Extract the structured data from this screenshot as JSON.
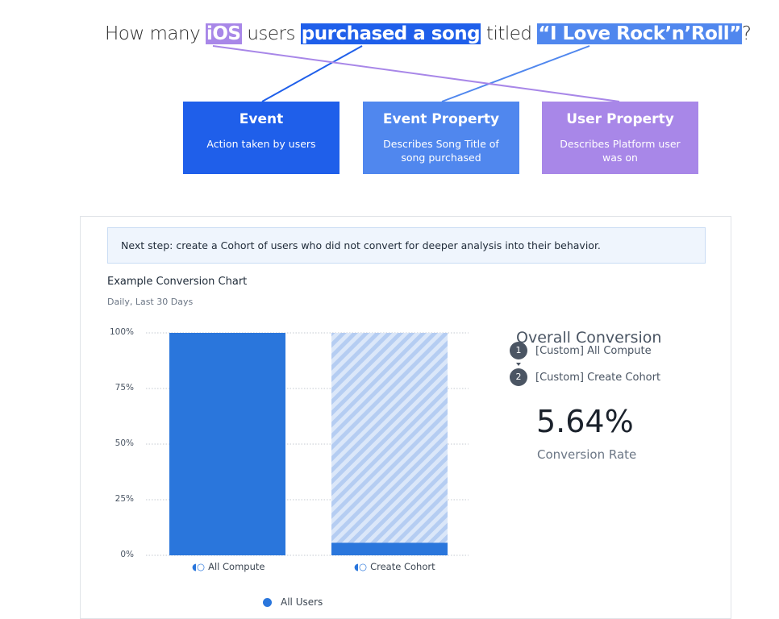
{
  "question": {
    "p1": "How many ",
    "h1": "iOS",
    "p2": " users ",
    "h2": "purchased a song",
    "p3": " titled ",
    "h3": "“I Love Rock’n’Roll”",
    "p4": "?"
  },
  "boxes": [
    {
      "title": "Event",
      "desc": "Action taken by users",
      "color": "#1f5fea"
    },
    {
      "title": "Event Property",
      "desc": "Describes Song Title of song purchased",
      "color": "#5087ee"
    },
    {
      "title": "User Property",
      "desc": "Describes Platform user was on",
      "color": "#a887e8"
    }
  ],
  "card": {
    "note": "Next step: create a Cohort of users who did not convert for deeper analysis into their behavior.",
    "title": "Example Conversion Chart",
    "subtitle": "Daily, Last 30 Days",
    "overall_title": "Overall Conversion",
    "steps": [
      {
        "n": "1",
        "label": "[Custom] All Compute"
      },
      {
        "n": "2",
        "label": "[Custom] Create Cohort"
      }
    ],
    "rate": "5.64%",
    "rate_label": "Conversion Rate"
  },
  "chart_data": {
    "type": "bar",
    "categories": [
      "All Compute",
      "Create Cohort"
    ],
    "series": [
      {
        "name": "All Users",
        "values": [
          100,
          5.64
        ]
      }
    ],
    "yticks": [
      "0%",
      "25%",
      "50%",
      "75%",
      "100%"
    ],
    "ylim": [
      0,
      100
    ],
    "grid": true,
    "legend": "bottom",
    "color": "#2a76dc"
  }
}
